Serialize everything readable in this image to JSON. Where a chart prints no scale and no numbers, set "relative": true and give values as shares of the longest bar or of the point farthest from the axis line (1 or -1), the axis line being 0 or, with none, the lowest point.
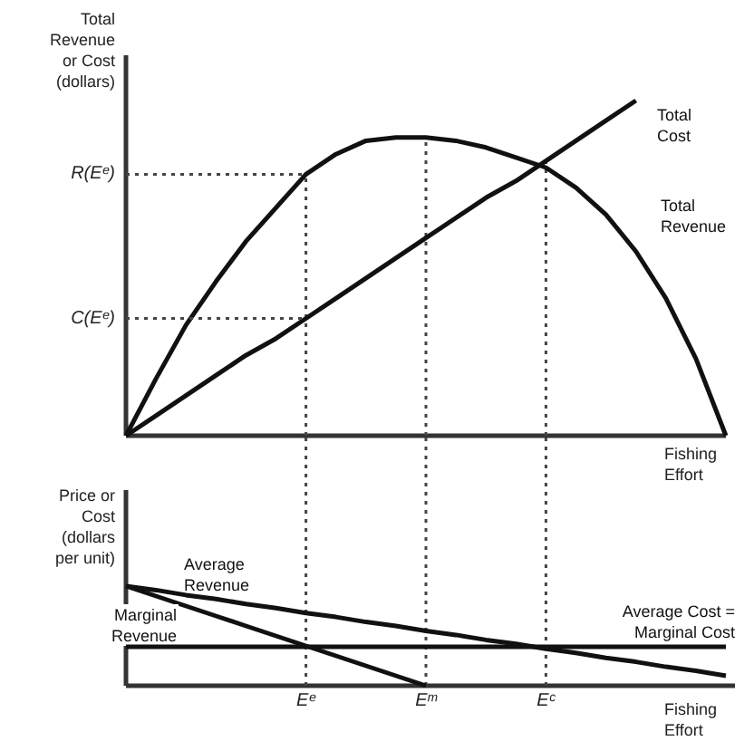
{
  "chart_data": [
    {
      "type": "line",
      "relative": true,
      "ylabel": "Total\nRevenue\nor Cost\n(dollars)",
      "xlabel": "Fishing\nEffort",
      "tick_labels": false,
      "categories": [
        null,
        null,
        null,
        null,
        null,
        null,
        "Eᵉ",
        null,
        null,
        null,
        "Eᵐ",
        null,
        null,
        null,
        "Eᶜ",
        null,
        null,
        null,
        null,
        null,
        null
      ],
      "series": [
        {
          "name": "Total\nRevenue",
          "color": "#111111",
          "values": [
            0,
            0.17,
            0.33,
            0.46,
            0.58,
            0.68,
            0.78,
            0.84,
            0.88,
            0.89,
            0.89,
            0.88,
            0.86,
            0.83,
            0.8,
            0.74,
            0.66,
            0.55,
            0.41,
            0.23,
            0
          ]
        },
        {
          "name": "Total\nCost",
          "color": "#111111",
          "values": [
            0,
            0.06,
            0.12,
            0.18,
            0.24,
            0.29,
            0.35,
            0.41,
            0.47,
            0.53,
            0.59,
            0.65,
            0.71,
            0.76,
            0.82,
            0.88,
            0.94,
            1.0,
            null,
            null,
            null
          ]
        }
      ],
      "ref_lines": [
        {
          "axis": "y",
          "value": 0.78,
          "label": "R(Eᵉ)",
          "line_style": "dotted"
        },
        {
          "axis": "y",
          "value": 0.35,
          "label": "C(Eᵉ)",
          "line_style": "dotted"
        },
        {
          "axis": "x",
          "value": "Eᵉ",
          "line_style": "dotted"
        },
        {
          "axis": "x",
          "value": "Eᵐ",
          "line_style": "dotted"
        },
        {
          "axis": "x",
          "value": "Eᶜ",
          "line_style": "dotted"
        }
      ]
    },
    {
      "type": "line",
      "relative": true,
      "ylabel": "Price or\nCost\n(dollars\nper unit)",
      "xlabel": "Fishing\nEffort",
      "categories": [
        null,
        null,
        null,
        null,
        null,
        null,
        "Eᵉ",
        null,
        null,
        null,
        "Eᵐ",
        null,
        null,
        null,
        "Eᶜ",
        null,
        null,
        null,
        null,
        null,
        null
      ],
      "series": [
        {
          "name": "Average\nRevenue",
          "color": "#111111",
          "values": [
            1,
            0.96,
            0.91,
            0.87,
            0.82,
            0.78,
            0.73,
            0.69,
            0.64,
            0.6,
            0.55,
            0.51,
            0.46,
            0.42,
            0.37,
            0.33,
            0.28,
            0.24,
            0.19,
            0.15,
            0.1
          ]
        },
        {
          "name": "Marginal\nRevenue",
          "color": "#111111",
          "values": [
            1,
            0.9,
            0.8,
            0.7,
            0.6,
            0.5,
            0.4,
            0.3,
            0.2,
            0.1,
            0,
            null,
            null,
            null,
            null,
            null,
            null,
            null,
            null,
            null,
            null
          ]
        },
        {
          "name": "Average Cost =\nMarginal Cost",
          "color": "#111111",
          "values": [
            0.39,
            0.39,
            0.39,
            0.39,
            0.39,
            0.39,
            0.39,
            0.39,
            0.39,
            0.39,
            0.39,
            0.39,
            0.39,
            0.39,
            0.39,
            0.39,
            0.39,
            0.39,
            0.39,
            0.39,
            0.39
          ]
        }
      ],
      "ref_lines": [
        {
          "axis": "x",
          "value": "Eᵉ",
          "line_style": "dotted"
        },
        {
          "axis": "x",
          "value": "Eᵐ",
          "line_style": "dotted"
        },
        {
          "axis": "x",
          "value": "Eᶜ",
          "line_style": "dotted"
        }
      ]
    }
  ]
}
